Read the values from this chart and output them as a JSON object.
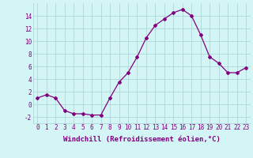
{
  "x": [
    0,
    1,
    2,
    3,
    4,
    5,
    6,
    7,
    8,
    9,
    10,
    11,
    12,
    13,
    14,
    15,
    16,
    17,
    18,
    19,
    20,
    21,
    22,
    23
  ],
  "y": [
    1,
    1.5,
    1,
    -1,
    -1.5,
    -1.5,
    -1.7,
    -1.7,
    1,
    3.5,
    5,
    7.5,
    10.5,
    12.5,
    13.5,
    14.5,
    15,
    14,
    11,
    7.5,
    6.5,
    5,
    5,
    5.8
  ],
  "line_color": "#800080",
  "marker": "D",
  "marker_size": 2.0,
  "bg_color": "#d4f5f5",
  "grid_color": "#b0d8d8",
  "xlabel": "Windchill (Refroidissement éolien,°C)",
  "xlabel_fontsize": 6.5,
  "tick_fontsize": 5.5,
  "ylim": [
    -3,
    16
  ],
  "yticks": [
    -2,
    0,
    2,
    4,
    6,
    8,
    10,
    12,
    14
  ],
  "xlim": [
    -0.5,
    23.5
  ],
  "xtick_labels": [
    "0",
    "1",
    "2",
    "3",
    "4",
    "5",
    "6",
    "7",
    "8",
    "9",
    "10",
    "11",
    "12",
    "13",
    "14",
    "15",
    "16",
    "17",
    "18",
    "19",
    "20",
    "21",
    "22",
    "23"
  ]
}
